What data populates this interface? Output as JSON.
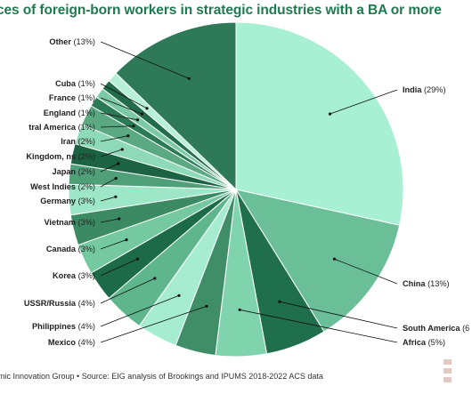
{
  "title": "ces of foreign-born workers in strategic industries with a BA or more",
  "footer": "mic Innovation Group • Source: EIG analysis of Brookings and IPUMS 2018-2022 ACS data",
  "chart_data": {
    "type": "pie",
    "title": "ces of foreign-born workers in strategic industries with a BA or more",
    "slices": [
      {
        "label": "India",
        "value": 29,
        "pct_label": "(29%)",
        "color": "#a8f0d4"
      },
      {
        "label": "China",
        "value": 13,
        "pct_label": "(13%)",
        "color": "#6bbf98"
      },
      {
        "label": "South America",
        "value": 6,
        "pct_label": "(6",
        "color": "#1f6e4c"
      },
      {
        "label": "Africa",
        "value": 5,
        "pct_label": "(5%)",
        "color": "#7fd3ad"
      },
      {
        "label": "Mexico",
        "value": 4,
        "pct_label": "(4%)",
        "color": "#3f8e68"
      },
      {
        "label": "Philippines",
        "value": 4,
        "pct_label": "(4%)",
        "color": "#a6ecd0"
      },
      {
        "label": "USSR/Russia",
        "value": 4,
        "pct_label": "(4%)",
        "color": "#5fb68d"
      },
      {
        "label": "Korea",
        "value": 3,
        "pct_label": "(3%)",
        "color": "#1d6a48"
      },
      {
        "label": "Canada",
        "value": 3,
        "pct_label": "(3%)",
        "color": "#74c9a0"
      },
      {
        "label": "Vietnam",
        "value": 3,
        "pct_label": "(3%)",
        "color": "#3c8a63"
      },
      {
        "label": "Germany",
        "value": 3,
        "pct_label": "(3%)",
        "color": "#9de6c8"
      },
      {
        "label": "West Indies",
        "value": 2,
        "pct_label": "(2%)",
        "color": "#4f9f79"
      },
      {
        "label": "Japan",
        "value": 2,
        "pct_label": "(2%)",
        "color": "#1b6343"
      },
      {
        "label": "Kingdom, ns",
        "value": 2,
        "pct_label": "(2%)",
        "color": "#8ed9b8"
      },
      {
        "label": "Iran",
        "value": 2,
        "pct_label": "(2%)",
        "color": "#5aa982"
      },
      {
        "label": "tral America",
        "value": 1,
        "pct_label": "(1%)",
        "color": "#2a7a55"
      },
      {
        "label": "England",
        "value": 1,
        "pct_label": "(1%)",
        "color": "#7cc9a6"
      },
      {
        "label": "France",
        "value": 1,
        "pct_label": "(1%)",
        "color": "#226b4b"
      },
      {
        "label": "Cuba",
        "value": 1,
        "pct_label": "(1%)",
        "color": "#b7f0d8"
      },
      {
        "label": "Other",
        "value": 13,
        "pct_label": "(13%)",
        "color": "#2e7a58"
      }
    ]
  }
}
